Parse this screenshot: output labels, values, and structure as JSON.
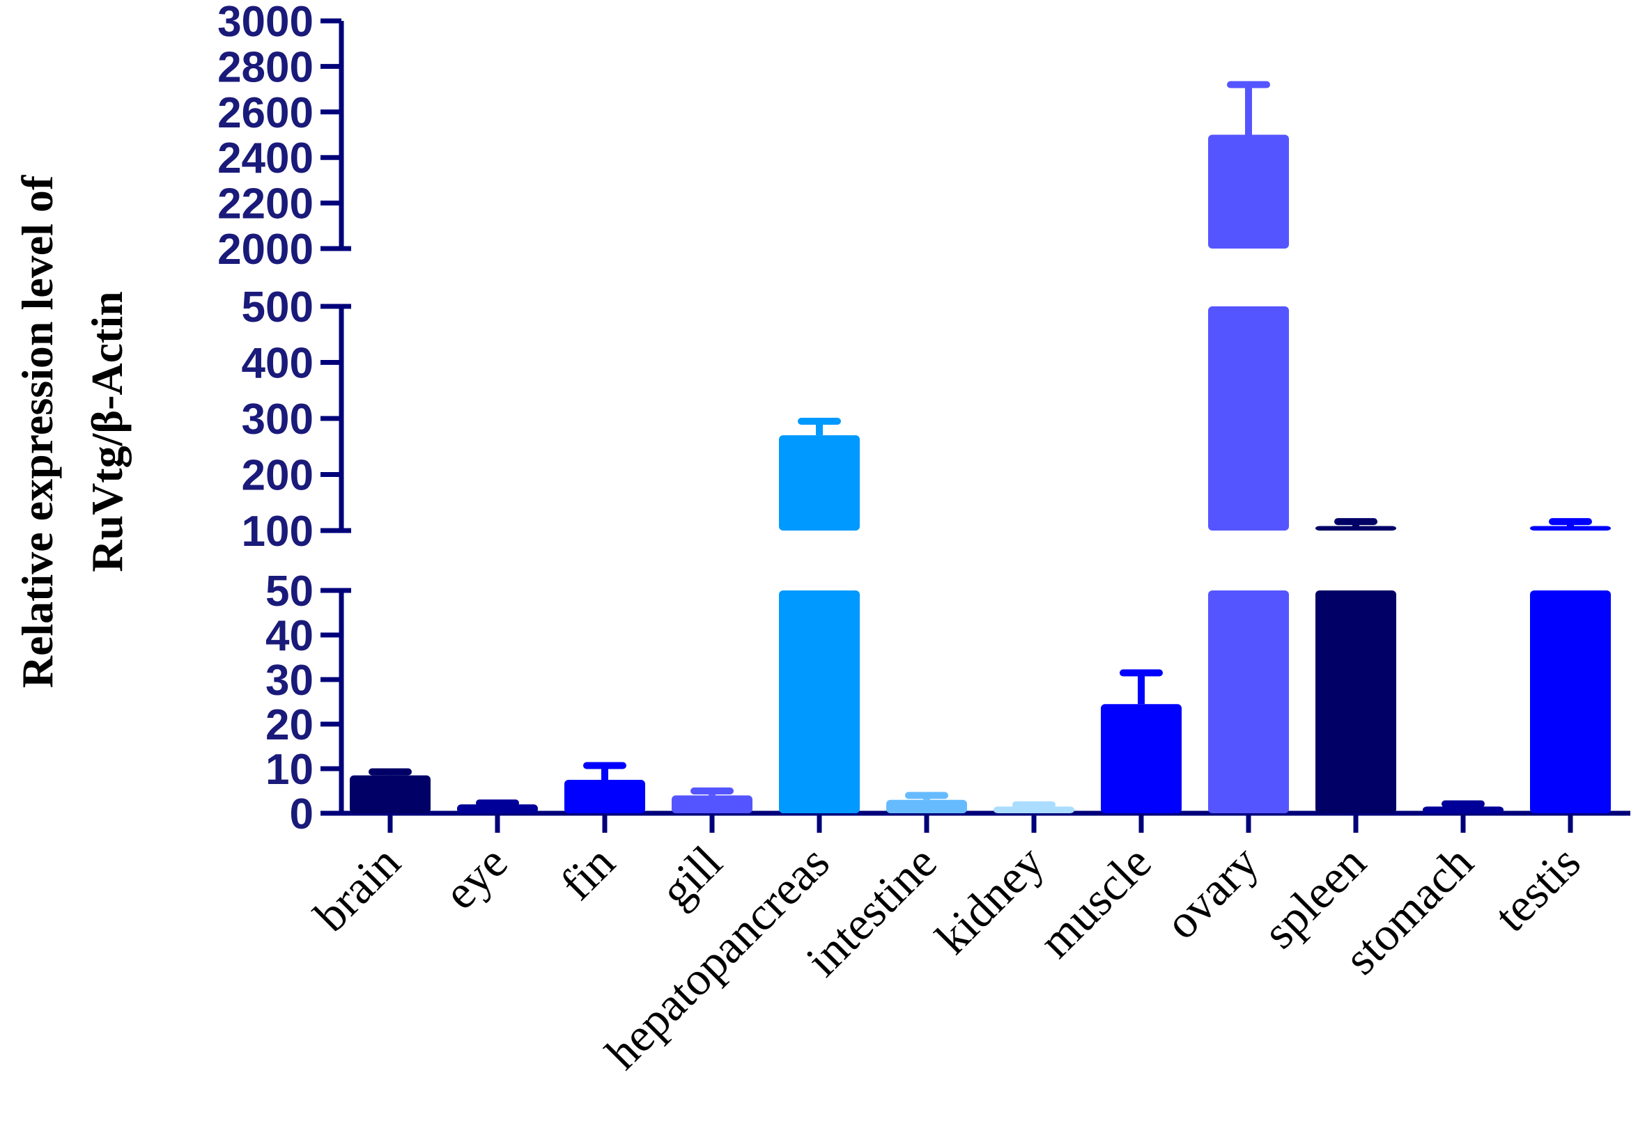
{
  "chart_data": {
    "type": "bar",
    "title": "",
    "xlabel": "",
    "ylabel_lines": [
      "Relative expression level of",
      "RuVtg/β-Actin"
    ],
    "broken_axis": true,
    "segments": [
      {
        "name": "lower",
        "range": [
          0,
          50
        ],
        "ticks": [
          "0",
          "10",
          "20",
          "30",
          "40",
          "50"
        ],
        "tick_values": [
          0,
          10,
          20,
          30,
          40,
          50
        ]
      },
      {
        "name": "middle",
        "range": [
          100,
          500
        ],
        "ticks": [
          "100",
          "200",
          "300",
          "400",
          "500"
        ],
        "tick_values": [
          100,
          200,
          300,
          400,
          500
        ]
      },
      {
        "name": "upper",
        "range": [
          2000,
          3000
        ],
        "ticks": [
          "2000",
          "2200",
          "2400",
          "2600",
          "2800",
          "3000"
        ],
        "tick_values": [
          2000,
          2200,
          2400,
          2600,
          2800,
          3000
        ]
      }
    ],
    "categories": [
      "brain",
      "eye",
      "fin",
      "gill",
      "hepatopancreas",
      "intestine",
      "kidney",
      "muscle",
      "ovary",
      "spleen",
      "stomach",
      "testis"
    ],
    "values": [
      8.5,
      2,
      7.5,
      4,
      270,
      3,
      1.5,
      24.5,
      2500,
      108,
      1.5,
      108
    ],
    "errors": [
      0.8,
      0.3,
      3.2,
      1.0,
      25,
      1.0,
      0.4,
      7.0,
      220,
      8,
      0.6,
      8
    ],
    "colors": [
      "#000066",
      "#000099",
      "#0000ff",
      "#5555ff",
      "#0099ff",
      "#66bbff",
      "#aaddff",
      "#0000ff",
      "#5555ff",
      "#000066",
      "#000099",
      "#0000ff"
    ],
    "axis_color": "#00007a"
  }
}
